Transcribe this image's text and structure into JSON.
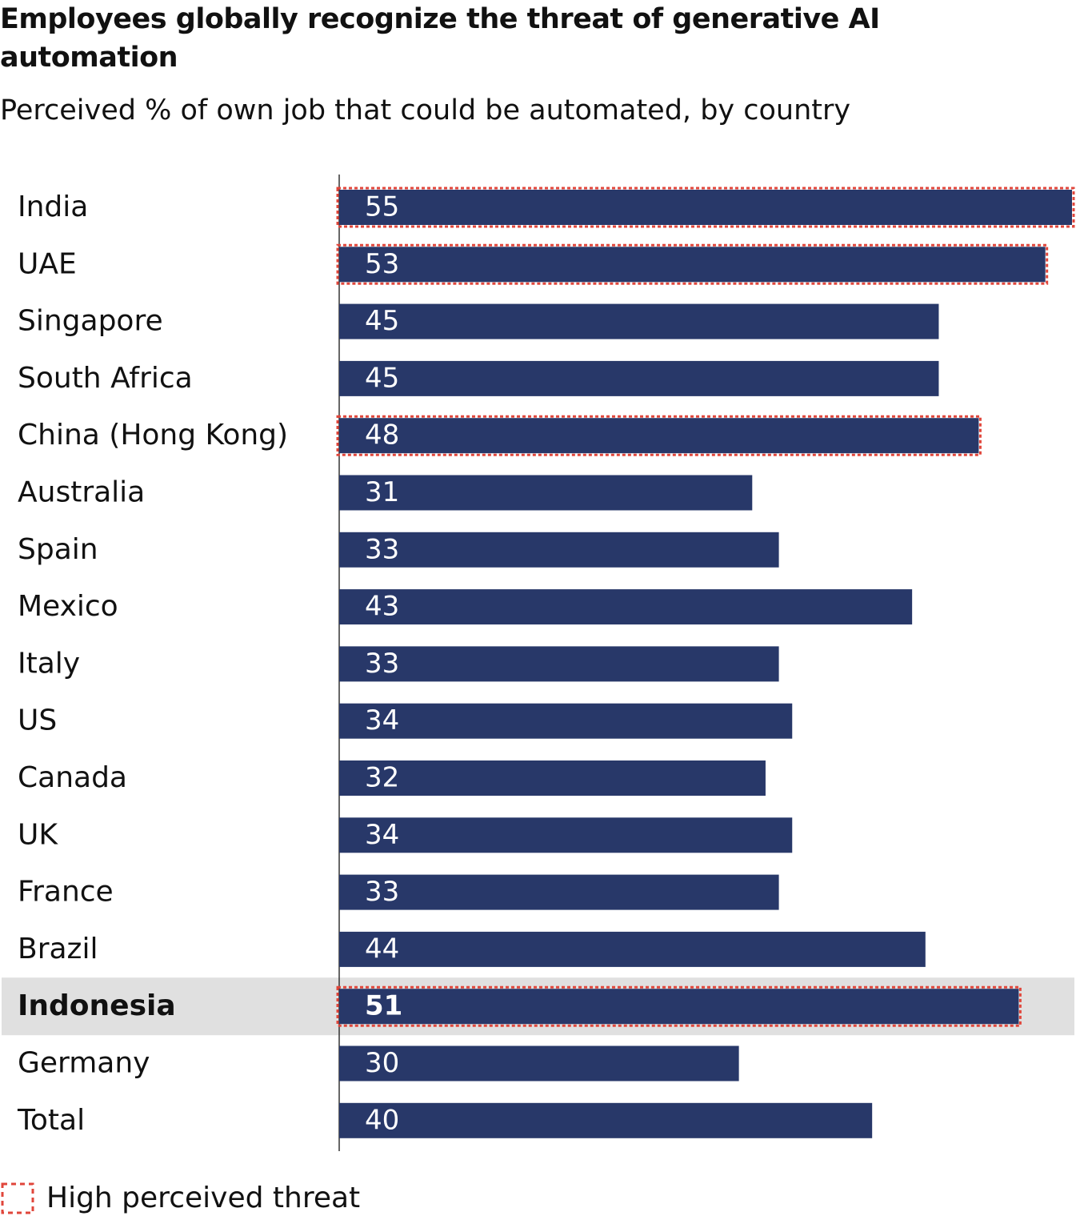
{
  "chart_data": {
    "type": "bar",
    "orientation": "horizontal",
    "title": "Employees globally recognize the threat of generative AI automation",
    "subtitle": "Perceived % of own job that could be automated, by country",
    "categories": [
      "India",
      "UAE",
      "Singapore",
      "South Africa",
      "China (Hong Kong)",
      "Australia",
      "Spain",
      "Mexico",
      "Italy",
      "US",
      "Canada",
      "UK",
      "France",
      "Brazil",
      "Indonesia",
      "Germany",
      "Total"
    ],
    "values": [
      55,
      53,
      45,
      45,
      48,
      31,
      33,
      43,
      33,
      34,
      32,
      34,
      33,
      44,
      51,
      30,
      40
    ],
    "high_threat": [
      true,
      true,
      false,
      false,
      true,
      false,
      false,
      false,
      false,
      false,
      false,
      false,
      false,
      false,
      true,
      false,
      false
    ],
    "highlight_category": "Indonesia",
    "color": "#283869",
    "outline_color": "#e0463b",
    "highlight_background": "#e0e0e0",
    "legend": {
      "label": "High perceived threat"
    }
  }
}
